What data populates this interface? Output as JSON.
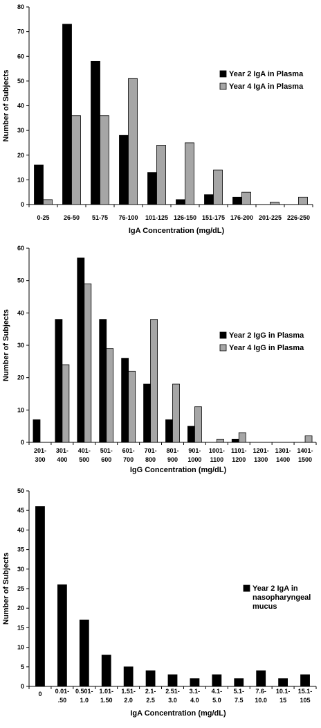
{
  "chart_data": [
    {
      "type": "bar",
      "categories": [
        "0-25",
        "26-50",
        "51-75",
        "76-100",
        "101-125",
        "126-150",
        "151-175",
        "176-200",
        "201-225",
        "226-250"
      ],
      "series": [
        {
          "name": "Year 2 IgA in Plasma",
          "color": "#000000",
          "values": [
            16,
            73,
            58,
            28,
            13,
            2,
            4,
            3,
            0,
            0
          ]
        },
        {
          "name": "Year 4 IgA in Plasma",
          "color": "#a6a6a6",
          "values": [
            2,
            36,
            36,
            51,
            24,
            25,
            14,
            5,
            1,
            3
          ]
        }
      ],
      "ylabel": "Number of Subjects",
      "xlabel": "IgA Concentration (mg/dL)",
      "ylim": [
        0,
        80
      ],
      "yticks": [
        0,
        10,
        20,
        30,
        40,
        50,
        60,
        70,
        80
      ],
      "grid": false,
      "legend_position": "right"
    },
    {
      "type": "bar",
      "categories": [
        [
          "201-",
          "300"
        ],
        [
          "301-",
          "400"
        ],
        [
          "401-",
          "500"
        ],
        [
          "501-",
          "600"
        ],
        [
          "601-",
          "700"
        ],
        [
          "701-",
          "800"
        ],
        [
          "801-",
          "900"
        ],
        [
          "901-",
          "1000"
        ],
        [
          "1001-",
          "1100"
        ],
        [
          "1101-",
          "1200"
        ],
        [
          "1201-",
          "1300"
        ],
        [
          "1301-",
          "1400"
        ],
        [
          "1401-",
          "1500"
        ]
      ],
      "series": [
        {
          "name": "Year 2 IgG in Plasma",
          "color": "#000000",
          "values": [
            7,
            38,
            57,
            38,
            26,
            18,
            7,
            5,
            0,
            1,
            0,
            0,
            0
          ]
        },
        {
          "name": "Year 4 IgG in Plasma",
          "color": "#a6a6a6",
          "values": [
            0,
            24,
            49,
            29,
            22,
            38,
            18,
            11,
            1,
            3,
            0,
            0,
            2
          ]
        }
      ],
      "ylabel": "Number of Subjects",
      "xlabel": "IgG Concentration (mg/dL)",
      "ylim": [
        0,
        60
      ],
      "yticks": [
        0,
        10,
        20,
        30,
        40,
        50,
        60
      ],
      "grid": false,
      "legend_position": "right"
    },
    {
      "type": "bar",
      "categories": [
        [
          "0"
        ],
        [
          "0.01-",
          ".50"
        ],
        [
          "0.501-",
          "1.0"
        ],
        [
          "1.01-",
          "1.50"
        ],
        [
          "1.51-",
          "2.0"
        ],
        [
          "2.1-",
          "2.5"
        ],
        [
          "2.51-",
          "3.0"
        ],
        [
          "3.1-",
          "4.0"
        ],
        [
          "4.1-",
          "5.0"
        ],
        [
          "5.1-",
          "7.5"
        ],
        [
          "7.6-",
          "10.0"
        ],
        [
          "10.1-",
          "15"
        ],
        [
          "15.1-",
          "105"
        ]
      ],
      "series": [
        {
          "name": [
            "Year 2 IgA in",
            "nasopharyngeal",
            "mucus"
          ],
          "color": "#000000",
          "values": [
            46,
            26,
            17,
            8,
            5,
            4,
            3,
            2,
            3,
            2,
            4,
            2,
            3
          ]
        }
      ],
      "ylabel": "Number of Subjects",
      "xlabel": "IgA Concentration (mg/dL)",
      "ylim": [
        0,
        50
      ],
      "yticks": [
        0,
        5,
        10,
        15,
        20,
        25,
        30,
        35,
        40,
        45,
        50
      ],
      "grid": false,
      "legend_position": "right"
    }
  ]
}
